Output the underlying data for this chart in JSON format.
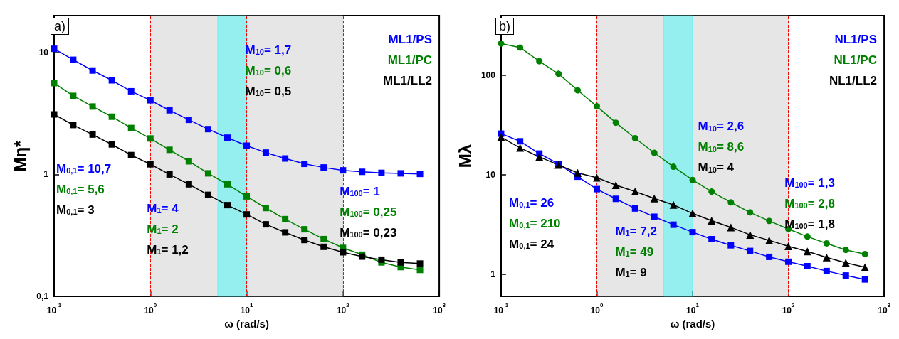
{
  "chart_data": [
    {
      "type": "line",
      "title": "a)",
      "xlabel": "ω (rad/s)",
      "ylabel": "Mη*",
      "log": "xy",
      "marker": "square",
      "legend": "top right",
      "grid": false,
      "x": [
        0.1,
        0.158,
        0.251,
        0.398,
        0.631,
        1,
        1.58,
        2.51,
        3.98,
        6.31,
        10,
        15.8,
        25.1,
        39.8,
        63.1,
        100,
        158,
        251,
        398,
        631
      ],
      "xlim": [
        0.1,
        1000
      ],
      "xticks": [
        {
          "value": 0.1,
          "label": "10$^{-1}$"
        },
        {
          "value": 1,
          "label": "10$^{0}$"
        },
        {
          "value": 10,
          "label": "10$^{1}$"
        },
        {
          "value": 100,
          "label": "10$^{2}$"
        },
        {
          "value": 1000,
          "label": "10$^{3}$"
        }
      ],
      "ylim": [
        0.1,
        20
      ],
      "yticks": [
        {
          "value": 0.1,
          "label": "0,1"
        },
        1,
        10
      ],
      "series": [
        {
          "name": "ML1/PS",
          "color": "#0000ff",
          "values": [
            10.7,
            8.7,
            7.1,
            5.9,
            4.8,
            4.05,
            3.35,
            2.8,
            2.35,
            2.0,
            1.72,
            1.51,
            1.35,
            1.22,
            1.14,
            1.08,
            1.05,
            1.03,
            1.02,
            1.01
          ]
        },
        {
          "name": "ML1/PC",
          "color": "#008000",
          "values": [
            5.6,
            4.4,
            3.6,
            2.97,
            2.4,
            1.97,
            1.59,
            1.28,
            1.02,
            0.83,
            0.66,
            0.53,
            0.43,
            0.355,
            0.295,
            0.25,
            0.22,
            0.19,
            0.174,
            0.165
          ]
        },
        {
          "name": "ML1/LL2",
          "color": "#000000",
          "values": [
            3.1,
            2.54,
            2.12,
            1.76,
            1.44,
            1.21,
            1.0,
            0.83,
            0.68,
            0.56,
            0.47,
            0.39,
            0.335,
            0.29,
            0.255,
            0.23,
            0.212,
            0.2,
            0.19,
            0.186
          ]
        }
      ],
      "bands": [
        {
          "axis": "x",
          "from": 1,
          "to": 100,
          "color": "#c0c0c0"
        },
        {
          "axis": "x",
          "from": 5,
          "to": 10,
          "color": "#00ffff"
        }
      ],
      "ref_lines": [
        {
          "axis": "x",
          "value": 1,
          "color": "#ff0000",
          "line_style": "dashed"
        },
        {
          "axis": "x",
          "value": 10,
          "color": "#ff0000",
          "line_style": "dashed"
        },
        {
          "axis": "x",
          "value": 100,
          "color": "#ff0000",
          "line_style": "dashed"
        }
      ],
      "annotations": [
        "M$_{0,1}$= 10,7",
        "M$_{0,1}$= 5,6",
        "M$_{0,1}$= 3",
        "M$_{1}$= 4",
        "M$_{1}$= 2",
        "M$_{1}$= 1,2",
        "M$_{10}$= 1,7",
        "M$_{10}$= 0,6",
        "M$_{10}$= 0,5",
        "M$_{100}$= 1",
        "M$_{100}$= 0,25",
        "M$_{100}$= 0,23"
      ]
    },
    {
      "type": "line",
      "title": "b)",
      "xlabel": "ω (rad/s)",
      "ylabel": "Mλ",
      "log": "xy",
      "legend": "top right",
      "grid": false,
      "x": [
        0.1,
        0.158,
        0.251,
        0.398,
        0.631,
        1,
        1.58,
        2.51,
        3.98,
        6.31,
        10,
        15.8,
        25.1,
        39.8,
        63.1,
        100,
        158,
        251,
        398,
        631
      ],
      "xlim": [
        0.1,
        1000
      ],
      "xticks": [
        {
          "value": 0.1,
          "label": "10$^{-1}$"
        },
        {
          "value": 1,
          "label": "10$^{0}$"
        },
        {
          "value": 10,
          "label": "10$^{1}$"
        },
        {
          "value": 100,
          "label": "10$^{2}$"
        },
        {
          "value": 1000,
          "label": "10$^{3}$"
        }
      ],
      "ylim": [
        0.6,
        400
      ],
      "yticks": [
        1,
        10,
        100
      ],
      "series": [
        {
          "name": "NL1/PS",
          "color": "#0000ff",
          "marker": "square",
          "values": [
            26,
            21.8,
            16.4,
            12.9,
            9.6,
            7.2,
            5.75,
            4.6,
            3.8,
            3.16,
            2.66,
            2.26,
            1.96,
            1.72,
            1.5,
            1.34,
            1.21,
            1.08,
            0.975,
            0.89
          ]
        },
        {
          "name": "NL1/PC",
          "color": "#008000",
          "marker": "circle",
          "values": [
            210,
            191,
            139,
            104,
            71,
            49,
            33.5,
            23.4,
            16.7,
            12.1,
            8.9,
            6.8,
            5.3,
            4.2,
            3.45,
            2.86,
            2.4,
            2.05,
            1.76,
            1.6
          ]
        },
        {
          "name": "NL1/LL2",
          "color": "#000000",
          "marker": "triangle",
          "values": [
            24,
            18.7,
            15.2,
            12.6,
            10.5,
            9.4,
            7.9,
            6.8,
            5.8,
            5.0,
            4.1,
            3.47,
            2.97,
            2.5,
            2.2,
            1.92,
            1.7,
            1.48,
            1.31,
            1.18
          ]
        }
      ],
      "bands": [
        {
          "axis": "x",
          "from": 1,
          "to": 100,
          "color": "#c0c0c0"
        },
        {
          "axis": "x",
          "from": 5,
          "to": 10,
          "color": "#00ffff"
        }
      ],
      "ref_lines": [
        {
          "axis": "x",
          "value": 1,
          "color": "#ff0000",
          "line_style": "dashed"
        },
        {
          "axis": "x",
          "value": 10,
          "color": "#ff0000",
          "line_style": "dashed"
        },
        {
          "axis": "x",
          "value": 100,
          "color": "#ff0000",
          "line_style": "dashed"
        }
      ],
      "annotations": [
        "M$_{0,1}$= 26",
        "M$_{0,1}$= 210",
        "M$_{0,1}$= 24",
        "M$_{1}$= 7,2",
        "M$_{1}$= 49",
        "M$_{1}$= 9",
        "M$_{10}$= 2,6",
        "M$_{10}$= 8,6",
        "M$_{10}$= 4",
        "M$_{100}$= 1,3",
        "M$_{100}$= 2,8",
        "M$_{100}$= 1,8"
      ]
    }
  ]
}
